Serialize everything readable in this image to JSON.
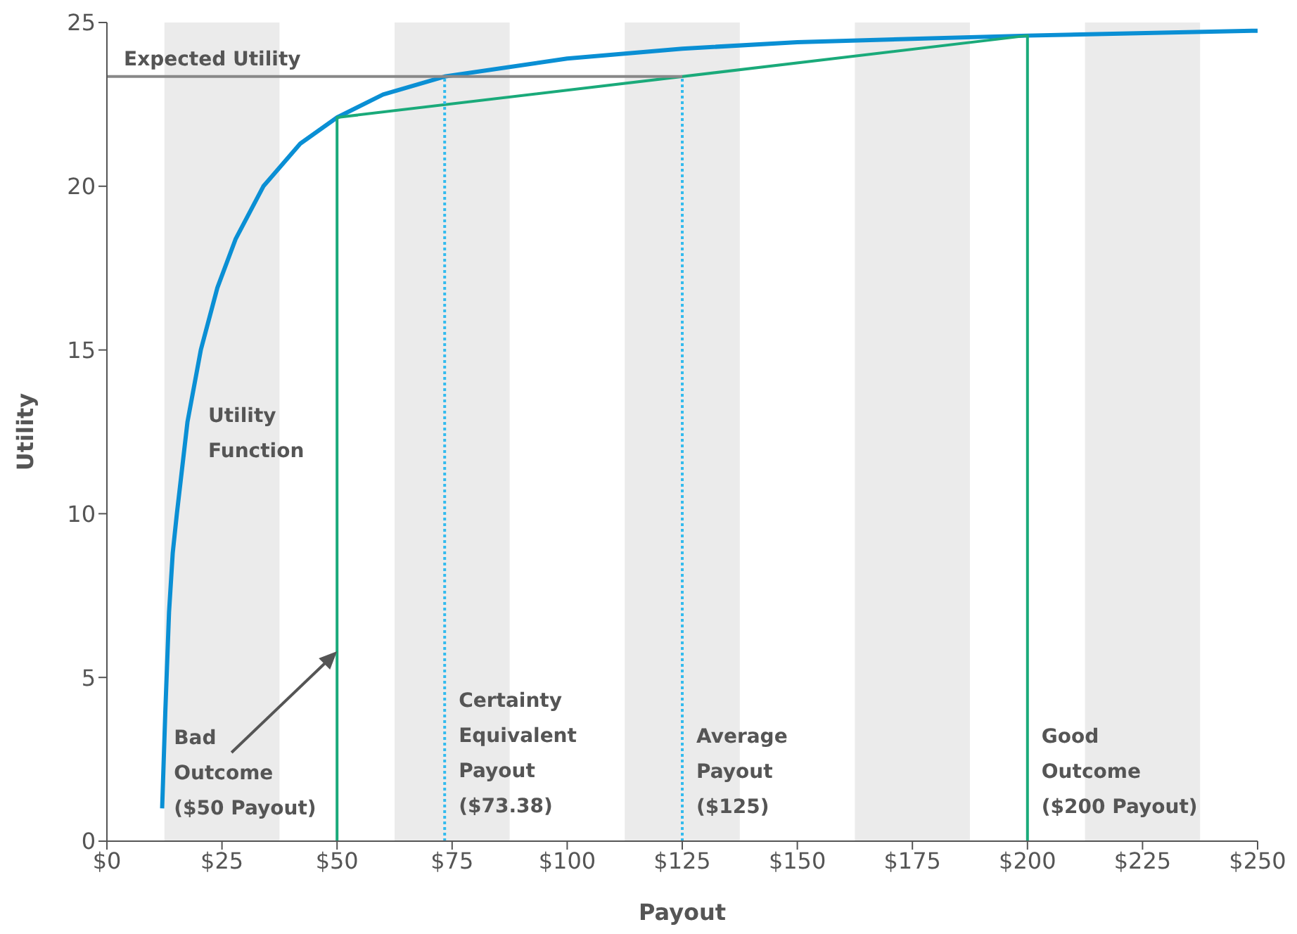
{
  "chart_data": {
    "type": "line",
    "xlabel": "Payout",
    "ylabel": "Utility",
    "xlim": [
      0,
      250
    ],
    "ylim": [
      0,
      25
    ],
    "xticks": [
      {
        "value": 0,
        "label": "$0"
      },
      {
        "value": 25,
        "label": "$25"
      },
      {
        "value": 50,
        "label": "$50"
      },
      {
        "value": 75,
        "label": "$75"
      },
      {
        "value": 100,
        "label": "$100"
      },
      {
        "value": 125,
        "label": "$125"
      },
      {
        "value": 150,
        "label": "$150"
      },
      {
        "value": 175,
        "label": "$175"
      },
      {
        "value": 200,
        "label": "$200"
      },
      {
        "value": 225,
        "label": "$225"
      },
      {
        "value": 250,
        "label": "$250"
      }
    ],
    "yticks": [
      0,
      5,
      10,
      15,
      20,
      25
    ],
    "grid": false,
    "legend": false,
    "marker": "none",
    "bands": [
      {
        "axis": "x",
        "from": 12.5,
        "to": 37.5,
        "color": "#ebebeb"
      },
      {
        "axis": "x",
        "from": 62.5,
        "to": 87.5,
        "color": "#ebebeb"
      },
      {
        "axis": "x",
        "from": 112.5,
        "to": 137.5,
        "color": "#ebebeb"
      },
      {
        "axis": "x",
        "from": 162.5,
        "to": 187.5,
        "color": "#ebebeb"
      },
      {
        "axis": "x",
        "from": 212.5,
        "to": 237.5,
        "color": "#ebebeb"
      }
    ],
    "series": [
      {
        "type": "line",
        "color": "#0a8fd4",
        "line_style": "solid",
        "x": [
          12,
          12.7,
          13.5,
          14.3,
          15.2,
          17.5,
          20.4,
          24,
          28,
          34,
          42,
          50,
          60,
          73.38,
          100,
          125,
          150,
          200,
          250
        ],
        "values": [
          1,
          4,
          7,
          8.8,
          10,
          12.8,
          15,
          16.9,
          18.4,
          20,
          21.3,
          22.1,
          22.8,
          23.35,
          23.9,
          24.2,
          24.4,
          24.6,
          24.75
        ]
      },
      {
        "type": "line",
        "color": "#1aaa7a",
        "line_style": "solid",
        "x": [
          50,
          50,
          200,
          200
        ],
        "values": [
          0,
          22.1,
          24.6,
          0
        ]
      },
      {
        "type": "line",
        "color": "#888888",
        "line_style": "solid",
        "x": [
          0,
          125
        ],
        "values": [
          23.35,
          23.35
        ]
      },
      {
        "type": "line",
        "color": "#33bbee",
        "line_style": "dotted",
        "x": [
          73.38,
          73.38
        ],
        "values": [
          0,
          23.35
        ]
      },
      {
        "type": "line",
        "color": "#33bbee",
        "line_style": "dotted",
        "x": [
          125,
          125
        ],
        "values": [
          0,
          23.35
        ]
      }
    ],
    "annotations": [
      {
        "text": "Expected Utility",
        "x": 0,
        "y": 23.35
      },
      "Utility\nFunction",
      {
        "text": "Bad\nOutcome\n($50 Payout)",
        "x": 50,
        "y": 5.8
      },
      {
        "text": "Certainty\nEquivalent\nPayout\n($73.38)",
        "x": 73.38,
        "y": 4.8
      },
      {
        "text": "Average\nPayout\n($125)",
        "x": 125,
        "y": 3.7
      },
      {
        "text": "Good\nOutcome\n($200 Payout)",
        "x": 200,
        "y": 3.7
      }
    ]
  }
}
